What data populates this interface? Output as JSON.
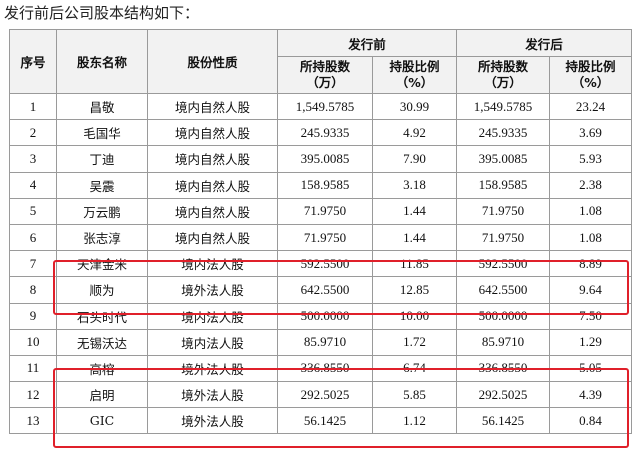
{
  "intro_text": "发行前后公司股本结构如下：",
  "table": {
    "headers": {
      "index": "序号",
      "name": "股东名称",
      "nature": "股份性质",
      "before_group": "发行前",
      "after_group": "发行后",
      "shares_line1": "所持股数",
      "shares_line2": "（万）",
      "ratio_line1": "持股比例",
      "ratio_line2": "（%）"
    },
    "rows": [
      {
        "idx": "1",
        "name": "昌敬",
        "nature": "境内自然人股",
        "before_shares": "1,549.5785",
        "before_ratio": "30.99",
        "after_shares": "1,549.5785",
        "after_ratio": "23.24"
      },
      {
        "idx": "2",
        "name": "毛国华",
        "nature": "境内自然人股",
        "before_shares": "245.9335",
        "before_ratio": "4.92",
        "after_shares": "245.9335",
        "after_ratio": "3.69"
      },
      {
        "idx": "3",
        "name": "丁迪",
        "nature": "境内自然人股",
        "before_shares": "395.0085",
        "before_ratio": "7.90",
        "after_shares": "395.0085",
        "after_ratio": "5.93"
      },
      {
        "idx": "4",
        "name": "吴震",
        "nature": "境内自然人股",
        "before_shares": "158.9585",
        "before_ratio": "3.18",
        "after_shares": "158.9585",
        "after_ratio": "2.38"
      },
      {
        "idx": "5",
        "name": "万云鹏",
        "nature": "境内自然人股",
        "before_shares": "71.9750",
        "before_ratio": "1.44",
        "after_shares": "71.9750",
        "after_ratio": "1.08"
      },
      {
        "idx": "6",
        "name": "张志淳",
        "nature": "境内自然人股",
        "before_shares": "71.9750",
        "before_ratio": "1.44",
        "after_shares": "71.9750",
        "after_ratio": "1.08"
      },
      {
        "idx": "7",
        "name": "天津金米",
        "nature": "境内法人股",
        "before_shares": "592.5500",
        "before_ratio": "11.85",
        "after_shares": "592.5500",
        "after_ratio": "8.89"
      },
      {
        "idx": "8",
        "name": "顺为",
        "nature": "境外法人股",
        "before_shares": "642.5500",
        "before_ratio": "12.85",
        "after_shares": "642.5500",
        "after_ratio": "9.64"
      },
      {
        "idx": "9",
        "name": "石头时代",
        "nature": "境内法人股",
        "before_shares": "500.0000",
        "before_ratio": "10.00",
        "after_shares": "500.0000",
        "after_ratio": "7.50"
      },
      {
        "idx": "10",
        "name": "无锡沃达",
        "nature": "境内法人股",
        "before_shares": "85.9710",
        "before_ratio": "1.72",
        "after_shares": "85.9710",
        "after_ratio": "1.29"
      },
      {
        "idx": "11",
        "name": "高榕",
        "nature": "境外法人股",
        "before_shares": "336.8550",
        "before_ratio": "6.74",
        "after_shares": "336.8550",
        "after_ratio": "5.05"
      },
      {
        "idx": "12",
        "name": "启明",
        "nature": "境外法人股",
        "before_shares": "292.5025",
        "before_ratio": "5.85",
        "after_shares": "292.5025",
        "after_ratio": "4.39"
      },
      {
        "idx": "13",
        "name": "GIC",
        "nature": "境外法人股",
        "before_shares": "56.1425",
        "before_ratio": "1.12",
        "after_shares": "56.1425",
        "after_ratio": "0.84"
      }
    ],
    "highlighted_rows": [
      [
        "7",
        "8"
      ],
      [
        "11",
        "12",
        "13"
      ]
    ]
  },
  "colors": {
    "highlight_border": "#e0202a",
    "header_bg": "#f2f2f2",
    "grid": "#9a9a9a"
  }
}
